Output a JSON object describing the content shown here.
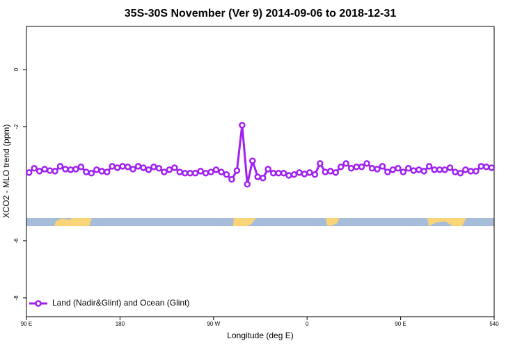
{
  "chart_data": {
    "type": "line",
    "title": "35S-30S November (Ver 9)   2014-09-06 to 2018-12-31",
    "x_label": "Longitude (deg E)",
    "y_label": "XCO2 - MLO trend (ppm)",
    "xlim": [
      90,
      540
    ],
    "xticks": [
      {
        "value": 90,
        "label": "90 E"
      },
      180,
      {
        "value": 270,
        "label": "90 W"
      },
      {
        "value": 360,
        "label": "0"
      },
      {
        "value": 450,
        "label": "90 E"
      },
      540
    ],
    "ylim": [
      -8.66,
      1.51
    ],
    "yticks": [
      0,
      -2,
      -6,
      -8
    ],
    "legend_position": "bottom left",
    "x": [
      92.5,
      97.5,
      102.5,
      107.5,
      112.5,
      117.5,
      122.5,
      127.5,
      132.5,
      137.5,
      142.5,
      147.5,
      152.5,
      157.5,
      162.5,
      167.5,
      172.5,
      177.5,
      182.5,
      187.5,
      192.5,
      197.5,
      202.5,
      207.5,
      212.5,
      217.5,
      222.5,
      227.5,
      232.5,
      237.5,
      242.5,
      247.5,
      252.5,
      257.5,
      262.5,
      267.5,
      272.5,
      277.5,
      282.5,
      287.5,
      292.5,
      297.5,
      302.5,
      307.5,
      312.5,
      317.5,
      322.5,
      327.5,
      332.5,
      337.5,
      342.5,
      347.5,
      352.5,
      357.5,
      362.5,
      367.5,
      372.5,
      377.5,
      382.5,
      387.5,
      392.5,
      397.5,
      402.5,
      407.5,
      412.5,
      417.5,
      422.5,
      427.5,
      432.5,
      437.5,
      442.5,
      447.5,
      452.5,
      457.5,
      462.5,
      467.5,
      472.5,
      477.5,
      482.5,
      487.5,
      492.5,
      497.5,
      502.5,
      507.5,
      512.5,
      517.5,
      522.5,
      527.5,
      532.5,
      537.5
    ],
    "series": [
      {
        "name": "Land (Nadir&Glint) and Ocean (Glint)",
        "color": "#a020f0",
        "values": [
          -3.61,
          -3.46,
          -3.56,
          -3.49,
          -3.54,
          -3.56,
          -3.39,
          -3.49,
          -3.51,
          -3.49,
          -3.41,
          -3.59,
          -3.63,
          -3.51,
          -3.56,
          -3.59,
          -3.39,
          -3.44,
          -3.39,
          -3.41,
          -3.49,
          -3.39,
          -3.44,
          -3.51,
          -3.41,
          -3.46,
          -3.59,
          -3.51,
          -3.44,
          -3.59,
          -3.63,
          -3.63,
          -3.63,
          -3.56,
          -3.63,
          -3.59,
          -3.51,
          -3.59,
          -3.68,
          -3.85,
          -3.54,
          -1.95,
          -4.02,
          -3.2,
          -3.76,
          -3.8,
          -3.49,
          -3.63,
          -3.63,
          -3.63,
          -3.71,
          -3.68,
          -3.61,
          -3.66,
          -3.61,
          -3.68,
          -3.29,
          -3.59,
          -3.56,
          -3.61,
          -3.41,
          -3.29,
          -3.46,
          -3.41,
          -3.41,
          -3.29,
          -3.46,
          -3.49,
          -3.39,
          -3.59,
          -3.51,
          -3.46,
          -3.59,
          -3.46,
          -3.54,
          -3.51,
          -3.56,
          -3.39,
          -3.51,
          -3.51,
          -3.51,
          -3.44,
          -3.59,
          -3.63,
          -3.51,
          -3.56,
          -3.56,
          -3.39,
          -3.41,
          -3.44
        ]
      }
    ]
  }
}
